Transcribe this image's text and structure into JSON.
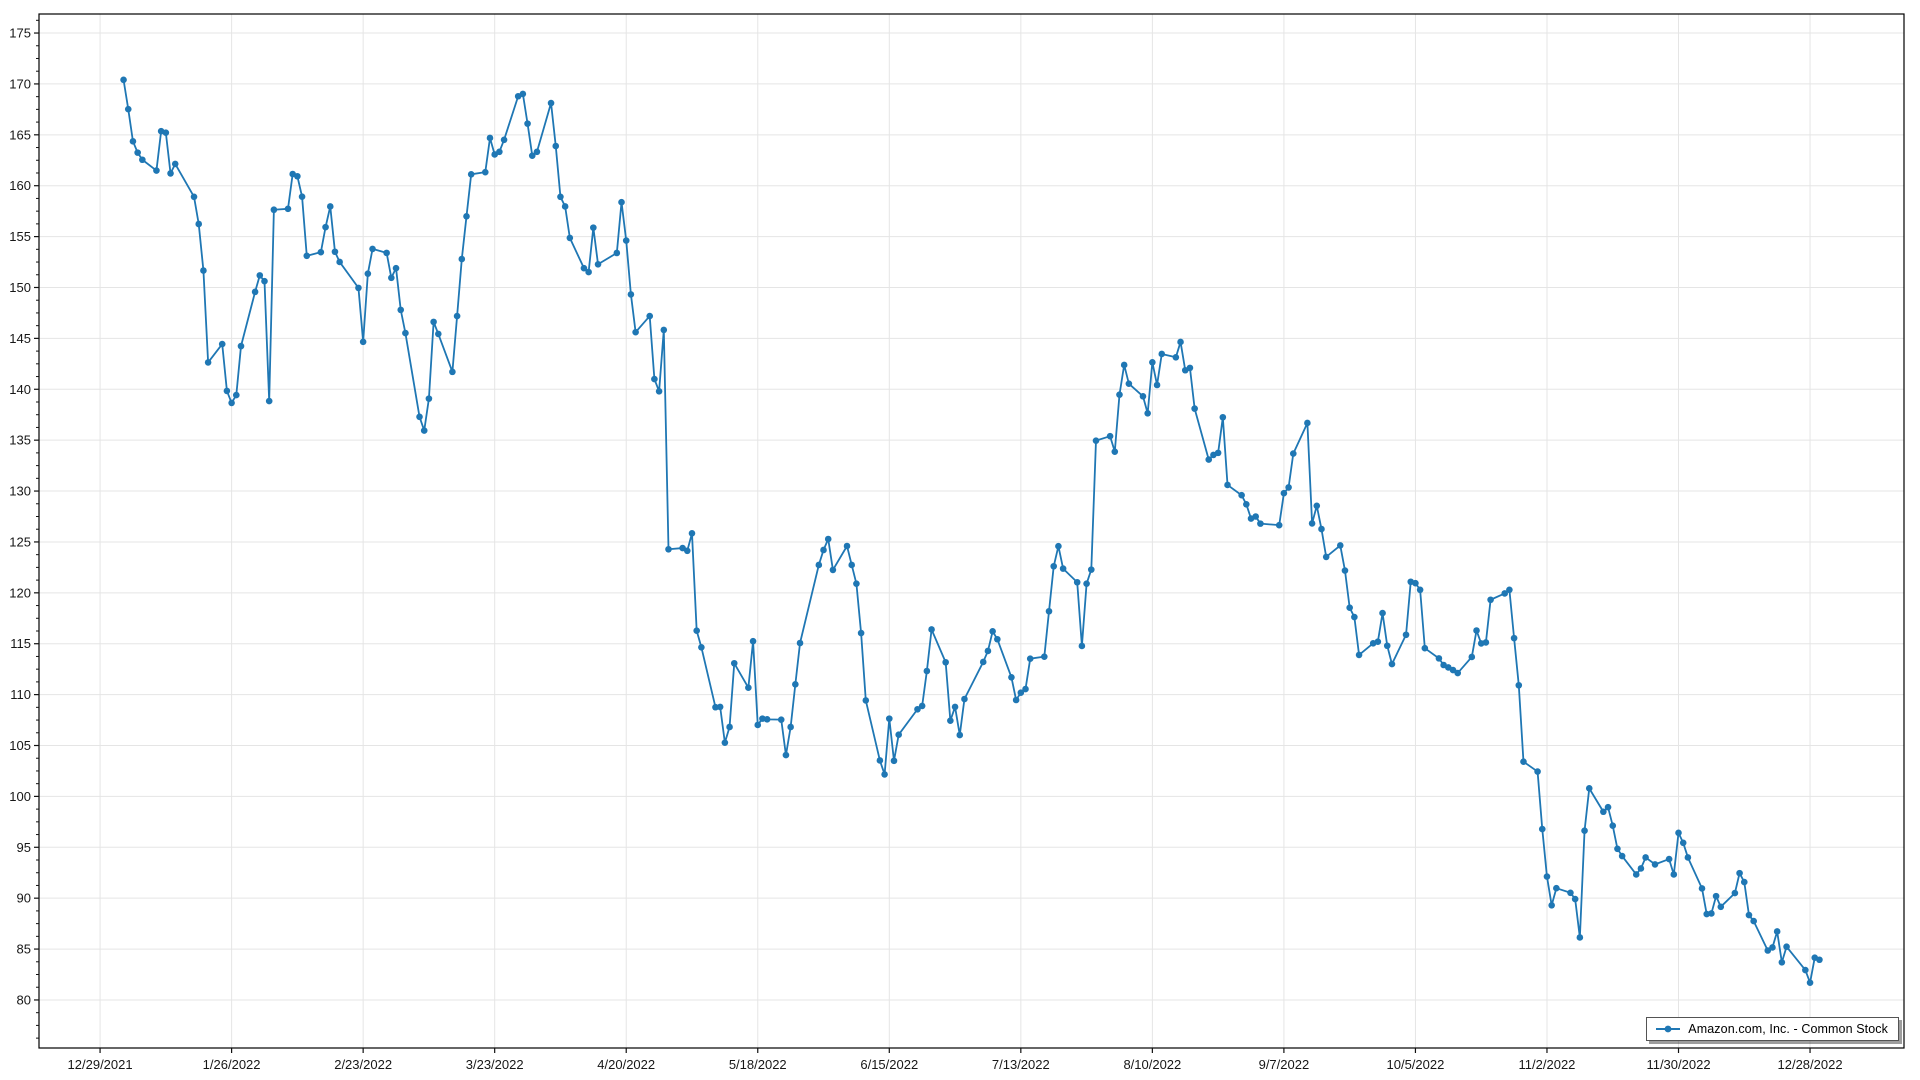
{
  "window": {
    "background": "#ffffff"
  },
  "chart_data": {
    "type": "line",
    "title": "",
    "xlabel": "",
    "ylabel": "",
    "grid": true,
    "plot_border_color": "#000000",
    "grid_color": "#e5e5e5",
    "tick_color": "#111111",
    "label_color": "#171717",
    "legend": {
      "position": "bottom-right-inside",
      "label": "Amazon.com, Inc. - Common Stock",
      "marker": "line-with-dot"
    },
    "x_axis": {
      "type": "date",
      "range": [
        "2021-12-16",
        "2023-01-17"
      ],
      "ticks": [
        {
          "date": "2021-12-29",
          "label": "12/29/2021"
        },
        {
          "date": "2022-01-26",
          "label": "1/26/2022"
        },
        {
          "date": "2022-02-23",
          "label": "2/23/2022"
        },
        {
          "date": "2022-03-23",
          "label": "3/23/2022"
        },
        {
          "date": "2022-04-20",
          "label": "4/20/2022"
        },
        {
          "date": "2022-05-18",
          "label": "5/18/2022"
        },
        {
          "date": "2022-06-15",
          "label": "6/15/2022"
        },
        {
          "date": "2022-07-13",
          "label": "7/13/2022"
        },
        {
          "date": "2022-08-10",
          "label": "8/10/2022"
        },
        {
          "date": "2022-09-07",
          "label": "9/7/2022"
        },
        {
          "date": "2022-10-05",
          "label": "10/5/2022"
        },
        {
          "date": "2022-11-02",
          "label": "11/2/2022"
        },
        {
          "date": "2022-11-30",
          "label": "11/30/2022"
        },
        {
          "date": "2022-12-28",
          "label": "12/28/2022"
        }
      ]
    },
    "y_axis": {
      "range": [
        75.28,
        176.87
      ],
      "major_tick_step": 5,
      "minor_tick_step": 1.25,
      "ticks": [
        80,
        85,
        90,
        95,
        100,
        105,
        110,
        115,
        120,
        125,
        130,
        135,
        140,
        145,
        150,
        155,
        160,
        165,
        170,
        175
      ]
    },
    "series": [
      {
        "name": "Amazon.com, Inc. - Common Stock",
        "color": "#1f77b4",
        "marker_radius": 3.3,
        "line_width": 1.8,
        "points": [
          [
            "2022-01-03",
            170.4
          ],
          [
            "2022-01-04",
            167.52
          ],
          [
            "2022-01-05",
            164.36
          ],
          [
            "2022-01-06",
            163.25
          ],
          [
            "2022-01-07",
            162.55
          ],
          [
            "2022-01-10",
            161.49
          ],
          [
            "2022-01-11",
            165.36
          ],
          [
            "2022-01-12",
            165.21
          ],
          [
            "2022-01-13",
            161.21
          ],
          [
            "2022-01-14",
            162.14
          ],
          [
            "2022-01-18",
            158.91
          ],
          [
            "2022-01-19",
            156.24
          ],
          [
            "2022-01-20",
            151.67
          ],
          [
            "2022-01-21",
            142.64
          ],
          [
            "2022-01-24",
            144.44
          ],
          [
            "2022-01-25",
            139.84
          ],
          [
            "2022-01-26",
            138.66
          ],
          [
            "2022-01-27",
            139.43
          ],
          [
            "2022-01-28",
            144.24
          ],
          [
            "2022-01-31",
            149.57
          ],
          [
            "2022-02-01",
            151.19
          ],
          [
            "2022-02-02",
            150.62
          ],
          [
            "2022-02-03",
            138.84
          ],
          [
            "2022-02-04",
            157.64
          ],
          [
            "2022-02-07",
            157.73
          ],
          [
            "2022-02-08",
            161.15
          ],
          [
            "2022-02-09",
            160.93
          ],
          [
            "2022-02-10",
            158.92
          ],
          [
            "2022-02-11",
            153.11
          ],
          [
            "2022-02-14",
            153.47
          ],
          [
            "2022-02-15",
            155.93
          ],
          [
            "2022-02-16",
            157.96
          ],
          [
            "2022-02-17",
            153.51
          ],
          [
            "2022-02-18",
            152.51
          ],
          [
            "2022-02-22",
            149.96
          ],
          [
            "2022-02-23",
            144.66
          ],
          [
            "2022-02-24",
            151.36
          ],
          [
            "2022-02-25",
            153.79
          ],
          [
            "2022-02-28",
            153.4
          ],
          [
            "2022-03-01",
            150.95
          ],
          [
            "2022-03-02",
            151.9
          ],
          [
            "2022-03-03",
            147.8
          ],
          [
            "2022-03-04",
            145.52
          ],
          [
            "2022-03-07",
            137.29
          ],
          [
            "2022-03-08",
            135.94
          ],
          [
            "2022-03-09",
            139.08
          ],
          [
            "2022-03-10",
            146.62
          ],
          [
            "2022-03-11",
            145.44
          ],
          [
            "2022-03-14",
            141.71
          ],
          [
            "2022-03-15",
            147.19
          ],
          [
            "2022-03-16",
            152.8
          ],
          [
            "2022-03-17",
            156.99
          ],
          [
            "2022-03-18",
            161.12
          ],
          [
            "2022-03-21",
            161.33
          ],
          [
            "2022-03-22",
            164.69
          ],
          [
            "2022-03-23",
            163.07
          ],
          [
            "2022-03-24",
            163.33
          ],
          [
            "2022-03-25",
            164.51
          ],
          [
            "2022-03-28",
            168.79
          ],
          [
            "2022-03-29",
            169.02
          ],
          [
            "2022-03-30",
            166.1
          ],
          [
            "2022-03-31",
            162.95
          ],
          [
            "2022-04-01",
            163.33
          ],
          [
            "2022-04-04",
            168.12
          ],
          [
            "2022-04-05",
            163.9
          ],
          [
            "2022-04-06",
            158.91
          ],
          [
            "2022-04-07",
            157.96
          ],
          [
            "2022-04-08",
            154.87
          ],
          [
            "2022-04-11",
            151.9
          ],
          [
            "2022-04-12",
            151.52
          ],
          [
            "2022-04-13",
            155.88
          ],
          [
            "2022-04-14",
            152.28
          ],
          [
            "2022-04-18",
            153.39
          ],
          [
            "2022-04-19",
            158.38
          ],
          [
            "2022-04-20",
            154.61
          ],
          [
            "2022-04-21",
            149.32
          ],
          [
            "2022-04-22",
            145.61
          ],
          [
            "2022-04-25",
            147.19
          ],
          [
            "2022-04-26",
            141.0
          ],
          [
            "2022-04-27",
            139.8
          ],
          [
            "2022-04-28",
            145.83
          ],
          [
            "2022-04-29",
            124.28
          ],
          [
            "2022-05-02",
            124.4
          ],
          [
            "2022-05-03",
            124.13
          ],
          [
            "2022-05-04",
            125.85
          ],
          [
            "2022-05-05",
            116.28
          ],
          [
            "2022-05-06",
            114.65
          ],
          [
            "2022-05-09",
            108.76
          ],
          [
            "2022-05-10",
            108.79
          ],
          [
            "2022-05-11",
            105.28
          ],
          [
            "2022-05-12",
            106.82
          ],
          [
            "2022-05-13",
            113.08
          ],
          [
            "2022-05-16",
            110.68
          ],
          [
            "2022-05-17",
            115.25
          ],
          [
            "2022-05-18",
            107.02
          ],
          [
            "2022-05-19",
            107.64
          ],
          [
            "2022-05-20",
            107.57
          ],
          [
            "2022-05-23",
            107.54
          ],
          [
            "2022-05-24",
            104.06
          ],
          [
            "2022-05-25",
            106.82
          ],
          [
            "2022-05-26",
            111.01
          ],
          [
            "2022-05-27",
            115.07
          ],
          [
            "2022-05-31",
            122.74
          ],
          [
            "2022-06-01",
            124.21
          ],
          [
            "2022-06-02",
            125.29
          ],
          [
            "2022-06-03",
            122.25
          ],
          [
            "2022-06-06",
            124.6
          ],
          [
            "2022-06-07",
            122.74
          ],
          [
            "2022-06-08",
            120.9
          ],
          [
            "2022-06-09",
            116.05
          ],
          [
            "2022-06-10",
            109.43
          ],
          [
            "2022-06-13",
            103.53
          ],
          [
            "2022-06-14",
            102.16
          ],
          [
            "2022-06-15",
            107.64
          ],
          [
            "2022-06-16",
            103.5
          ],
          [
            "2022-06-17",
            106.06
          ],
          [
            "2022-06-21",
            108.56
          ],
          [
            "2022-06-22",
            108.89
          ],
          [
            "2022-06-23",
            112.32
          ],
          [
            "2022-06-24",
            116.4
          ],
          [
            "2022-06-27",
            113.18
          ],
          [
            "2022-06-28",
            107.44
          ],
          [
            "2022-06-29",
            108.79
          ],
          [
            "2022-06-30",
            106.03
          ],
          [
            "2022-07-01",
            109.57
          ],
          [
            "2022-07-05",
            113.21
          ],
          [
            "2022-07-06",
            114.29
          ],
          [
            "2022-07-07",
            116.22
          ],
          [
            "2022-07-08",
            115.44
          ],
          [
            "2022-07-11",
            111.7
          ],
          [
            "2022-07-12",
            109.47
          ],
          [
            "2022-07-13",
            110.19
          ],
          [
            "2022-07-14",
            110.55
          ],
          [
            "2022-07-15",
            113.53
          ],
          [
            "2022-07-18",
            113.73
          ],
          [
            "2022-07-19",
            118.19
          ],
          [
            "2022-07-20",
            122.61
          ],
          [
            "2022-07-21",
            124.58
          ],
          [
            "2022-07-22",
            122.38
          ],
          [
            "2022-07-25",
            121.04
          ],
          [
            "2022-07-26",
            114.78
          ],
          [
            "2022-07-27",
            120.9
          ],
          [
            "2022-07-28",
            122.28
          ],
          [
            "2022-07-29",
            134.95
          ],
          [
            "2022-08-01",
            135.39
          ],
          [
            "2022-08-02",
            133.87
          ],
          [
            "2022-08-03",
            139.47
          ],
          [
            "2022-08-04",
            142.39
          ],
          [
            "2022-08-05",
            140.55
          ],
          [
            "2022-08-08",
            139.31
          ],
          [
            "2022-08-09",
            137.64
          ],
          [
            "2022-08-10",
            142.65
          ],
          [
            "2022-08-11",
            140.42
          ],
          [
            "2022-08-12",
            143.47
          ],
          [
            "2022-08-15",
            143.14
          ],
          [
            "2022-08-16",
            144.65
          ],
          [
            "2022-08-17",
            141.87
          ],
          [
            "2022-08-18",
            142.1
          ],
          [
            "2022-08-19",
            138.1
          ],
          [
            "2022-08-22",
            133.09
          ],
          [
            "2022-08-23",
            133.55
          ],
          [
            "2022-08-24",
            133.75
          ],
          [
            "2022-08-25",
            137.25
          ],
          [
            "2022-08-26",
            130.6
          ],
          [
            "2022-08-29",
            129.59
          ],
          [
            "2022-08-30",
            128.7
          ],
          [
            "2022-08-31",
            127.3
          ],
          [
            "2022-09-01",
            127.5
          ],
          [
            "2022-09-02",
            126.8
          ],
          [
            "2022-09-06",
            126.65
          ],
          [
            "2022-09-07",
            129.79
          ],
          [
            "2022-09-08",
            130.36
          ],
          [
            "2022-09-09",
            133.68
          ],
          [
            "2022-09-12",
            136.69
          ],
          [
            "2022-09-13",
            126.82
          ],
          [
            "2022-09-14",
            128.55
          ],
          [
            "2022-09-15",
            126.27
          ],
          [
            "2022-09-16",
            123.53
          ],
          [
            "2022-09-19",
            124.66
          ],
          [
            "2022-09-20",
            122.19
          ],
          [
            "2022-09-21",
            118.54
          ],
          [
            "2022-09-22",
            117.62
          ],
          [
            "2022-09-23",
            113.9
          ],
          [
            "2022-09-26",
            115.04
          ],
          [
            "2022-09-27",
            115.2
          ],
          [
            "2022-09-28",
            118.01
          ],
          [
            "2022-09-29",
            114.8
          ],
          [
            "2022-09-30",
            113.0
          ],
          [
            "2022-10-03",
            115.88
          ],
          [
            "2022-10-04",
            121.09
          ],
          [
            "2022-10-05",
            120.95
          ],
          [
            "2022-10-06",
            120.3
          ],
          [
            "2022-10-07",
            114.56
          ],
          [
            "2022-10-10",
            113.56
          ],
          [
            "2022-10-11",
            112.91
          ],
          [
            "2022-10-12",
            112.67
          ],
          [
            "2022-10-13",
            112.41
          ],
          [
            "2022-10-14",
            112.12
          ],
          [
            "2022-10-17",
            113.7
          ],
          [
            "2022-10-18",
            116.3
          ],
          [
            "2022-10-19",
            115.03
          ],
          [
            "2022-10-20",
            115.13
          ],
          [
            "2022-10-21",
            119.32
          ],
          [
            "2022-10-24",
            119.94
          ],
          [
            "2022-10-25",
            120.3
          ],
          [
            "2022-10-26",
            115.55
          ],
          [
            "2022-10-27",
            110.92
          ],
          [
            "2022-10-28",
            103.41
          ],
          [
            "2022-10-31",
            102.44
          ],
          [
            "2022-11-01",
            96.79
          ],
          [
            "2022-11-02",
            92.12
          ],
          [
            "2022-11-03",
            89.3
          ],
          [
            "2022-11-04",
            90.98
          ],
          [
            "2022-11-07",
            90.53
          ],
          [
            "2022-11-08",
            89.91
          ],
          [
            "2022-11-09",
            86.14
          ],
          [
            "2022-11-10",
            96.63
          ],
          [
            "2022-11-11",
            100.79
          ],
          [
            "2022-11-14",
            98.49
          ],
          [
            "2022-11-15",
            98.94
          ],
          [
            "2022-11-16",
            97.12
          ],
          [
            "2022-11-17",
            94.85
          ],
          [
            "2022-11-18",
            94.14
          ],
          [
            "2022-11-21",
            92.33
          ],
          [
            "2022-11-22",
            92.92
          ],
          [
            "2022-11-23",
            94.0
          ],
          [
            "2022-11-25",
            93.32
          ],
          [
            "2022-11-28",
            93.84
          ],
          [
            "2022-11-29",
            92.33
          ],
          [
            "2022-11-30",
            96.42
          ],
          [
            "2022-12-01",
            95.44
          ],
          [
            "2022-12-02",
            94.0
          ],
          [
            "2022-12-05",
            90.96
          ],
          [
            "2022-12-06",
            88.44
          ],
          [
            "2022-12-07",
            88.5
          ],
          [
            "2022-12-08",
            90.2
          ],
          [
            "2022-12-09",
            89.15
          ],
          [
            "2022-12-12",
            90.5
          ],
          [
            "2022-12-13",
            92.46
          ],
          [
            "2022-12-14",
            91.58
          ],
          [
            "2022-12-15",
            88.34
          ],
          [
            "2022-12-16",
            87.75
          ],
          [
            "2022-12-19",
            84.86
          ],
          [
            "2022-12-20",
            85.16
          ],
          [
            "2022-12-21",
            86.73
          ],
          [
            "2022-12-22",
            83.7
          ],
          [
            "2022-12-23",
            85.23
          ],
          [
            "2022-12-27",
            82.94
          ],
          [
            "2022-12-28",
            81.7
          ],
          [
            "2022-12-29",
            84.15
          ],
          [
            "2022-12-30",
            83.95
          ]
        ]
      }
    ]
  }
}
